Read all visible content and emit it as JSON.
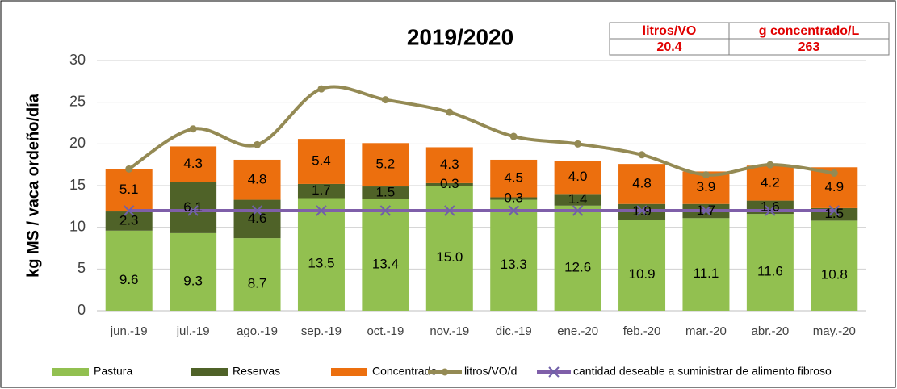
{
  "chart_data": {
    "type": "stacked-bar-line",
    "title": "2019/2020",
    "ylabel": "kg MS /  vaca ordeño/día",
    "categories": [
      "jun.-19",
      "jul.-19",
      "ago.-19",
      "sep.-19",
      "oct.-19",
      "nov.-19",
      "dic.-19",
      "ene.-20",
      "feb.-20",
      "mar.-20",
      "abr.-20",
      "may.-20"
    ],
    "ylim": [
      0,
      30
    ],
    "yticks": [
      0,
      5,
      10,
      15,
      20,
      25,
      30
    ],
    "grid": true,
    "legend": "bottom",
    "series": [
      {
        "name": "Pastura",
        "kind": "bar",
        "color": "#92c050",
        "values": [
          9.6,
          9.3,
          8.7,
          13.5,
          13.4,
          15.0,
          13.3,
          12.6,
          10.9,
          11.1,
          11.6,
          10.8
        ],
        "value_labels": [
          "9.6",
          "9.3",
          "8.7",
          "13.5",
          "13.4",
          "15.0",
          "13.3",
          "12.6",
          "10.9",
          "11.1",
          "11.6",
          "10.8"
        ]
      },
      {
        "name": "Reservas",
        "kind": "bar",
        "color": "#4f6228",
        "values": [
          2.3,
          6.1,
          4.6,
          1.7,
          1.5,
          0.3,
          0.3,
          1.4,
          1.9,
          1.7,
          1.6,
          1.5
        ],
        "value_labels": [
          "2.3",
          "6.1",
          "4.6",
          "1.7",
          "1.5",
          "0.3",
          "0.3",
          "1.4",
          "1.9",
          "1.7",
          "1.6",
          "1.5"
        ]
      },
      {
        "name": "Concentrado",
        "kind": "bar",
        "color": "#ec6f0e",
        "values": [
          5.1,
          4.3,
          4.8,
          5.4,
          5.2,
          4.3,
          4.5,
          4.0,
          4.8,
          3.9,
          4.2,
          4.9
        ],
        "value_labels": [
          "5.1",
          "4.3",
          "4.8",
          "5.4",
          "5.2",
          "4.3",
          "4.5",
          "4.0",
          "4.8",
          "3.9",
          "4.2",
          "4.9"
        ]
      },
      {
        "name": "litros/VO/d",
        "kind": "line",
        "marker": "circle",
        "color": "#948a54",
        "values": [
          17.0,
          21.8,
          19.9,
          26.6,
          25.3,
          23.8,
          20.9,
          20.0,
          18.7,
          16.3,
          17.5,
          16.5
        ]
      },
      {
        "name": "cantidad deseable a suministrar de alimento fibroso",
        "kind": "line",
        "marker": "x",
        "color": "#7f5fa9",
        "values": [
          12,
          12,
          12,
          12,
          12,
          12,
          12,
          12,
          12,
          12,
          12,
          12
        ]
      }
    ],
    "table": {
      "headers": [
        "litros/VO",
        "g concentrado/L"
      ],
      "values": [
        20.4,
        263
      ]
    }
  }
}
